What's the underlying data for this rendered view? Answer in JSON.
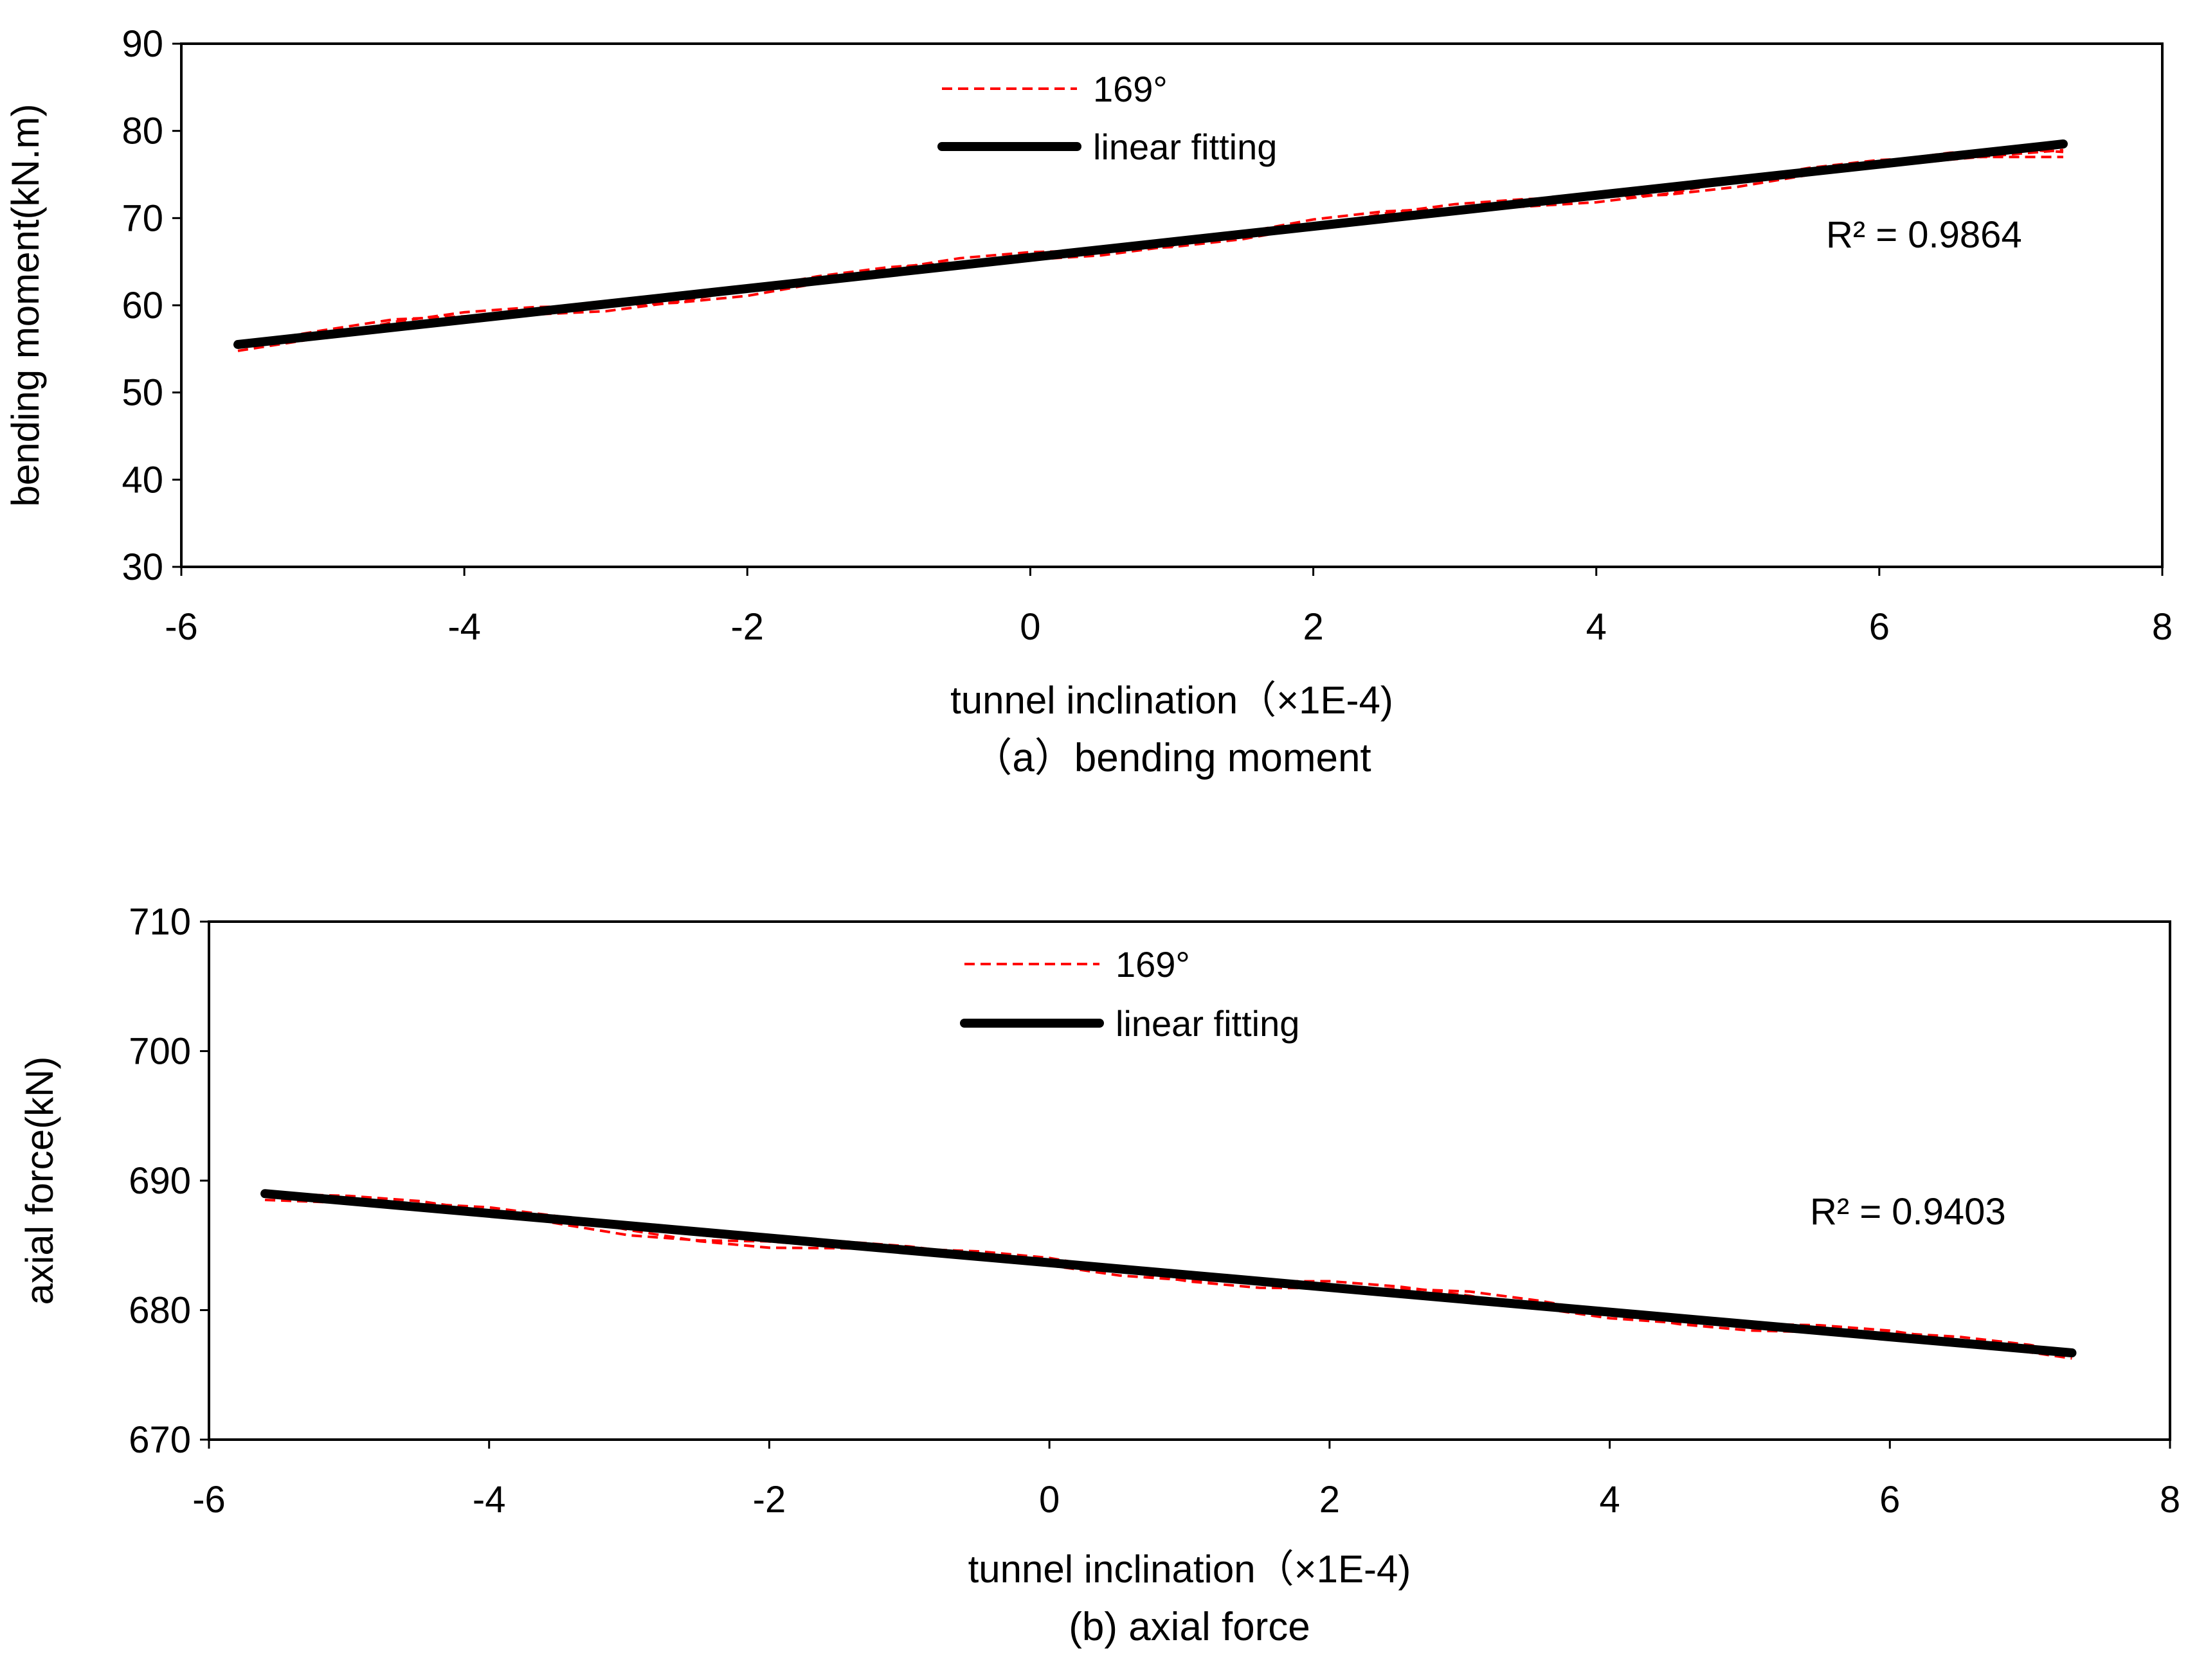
{
  "chart_data": [
    {
      "type": "line",
      "panel": "a",
      "caption": "（a）bending moment",
      "xlabel": "tunnel inclination（×1E-4)",
      "ylabel": "bending moment(kN.m)",
      "xlim": [
        -6,
        8
      ],
      "ylim": [
        30,
        90
      ],
      "xticks": [
        -6,
        -4,
        -2,
        0,
        2,
        4,
        6,
        8
      ],
      "yticks": [
        30,
        40,
        50,
        60,
        70,
        80,
        90
      ],
      "legend_position": "top-center",
      "annotation": "R² = 0.9864",
      "series": [
        {
          "name": "169°",
          "style": "dashed",
          "color": "#ff0000",
          "x": [
            -5.6,
            -5.0,
            -4.5,
            -4.0,
            -3.5,
            -3.0,
            -2.5,
            -2.0,
            -1.5,
            -1.0,
            -0.5,
            0.0,
            0.5,
            1.0,
            1.5,
            2.0,
            2.5,
            3.0,
            3.5,
            4.0,
            4.5,
            5.0,
            5.5,
            6.0,
            6.5,
            7.0,
            7.3
          ],
          "y": [
            55.5,
            56.5,
            57.6,
            58.4,
            59.3,
            60.1,
            61.0,
            61.8,
            62.7,
            63.6,
            64.6,
            65.6,
            66.5,
            67.4,
            68.3,
            69.2,
            70.0,
            70.8,
            71.7,
            72.6,
            73.4,
            74.3,
            75.1,
            75.9,
            76.7,
            77.4,
            77.8
          ]
        },
        {
          "name": "linear fitting",
          "style": "solid",
          "color": "#000000",
          "x": [
            -5.6,
            7.3
          ],
          "y": [
            55.5,
            78.5
          ]
        }
      ]
    },
    {
      "type": "line",
      "panel": "b",
      "caption": "(b)  axial force",
      "xlabel": "tunnel inclination（×1E-4)",
      "ylabel": "axial force(kN)",
      "xlim": [
        -6,
        8
      ],
      "ylim": [
        670,
        710
      ],
      "xticks": [
        -6,
        -4,
        -2,
        0,
        2,
        4,
        6,
        8
      ],
      "yticks": [
        670,
        680,
        690,
        700,
        710
      ],
      "legend_position": "top-center",
      "annotation": "R² = 0.9403",
      "series": [
        {
          "name": "169°",
          "style": "dashed",
          "color": "#ff0000",
          "x": [
            -5.6,
            -5.0,
            -4.5,
            -4.0,
            -3.5,
            -3.0,
            -2.5,
            -2.0,
            -1.5,
            -1.0,
            -0.5,
            0.0,
            0.5,
            1.0,
            1.5,
            2.0,
            2.5,
            3.0,
            3.5,
            4.0,
            4.5,
            5.0,
            5.5,
            6.0,
            6.5,
            7.0,
            7.3
          ],
          "y": [
            689.0,
            688.4,
            687.9,
            687.4,
            686.9,
            686.3,
            685.8,
            685.3,
            684.9,
            684.4,
            684.0,
            683.7,
            683.2,
            682.7,
            682.2,
            681.8,
            681.3,
            680.9,
            680.4,
            679.9,
            679.4,
            678.9,
            678.4,
            677.9,
            677.4,
            677.0,
            676.8
          ]
        },
        {
          "name": "linear fitting",
          "style": "solid",
          "color": "#000000",
          "x": [
            -5.6,
            7.3
          ],
          "y": [
            689.0,
            676.7
          ]
        }
      ]
    }
  ]
}
